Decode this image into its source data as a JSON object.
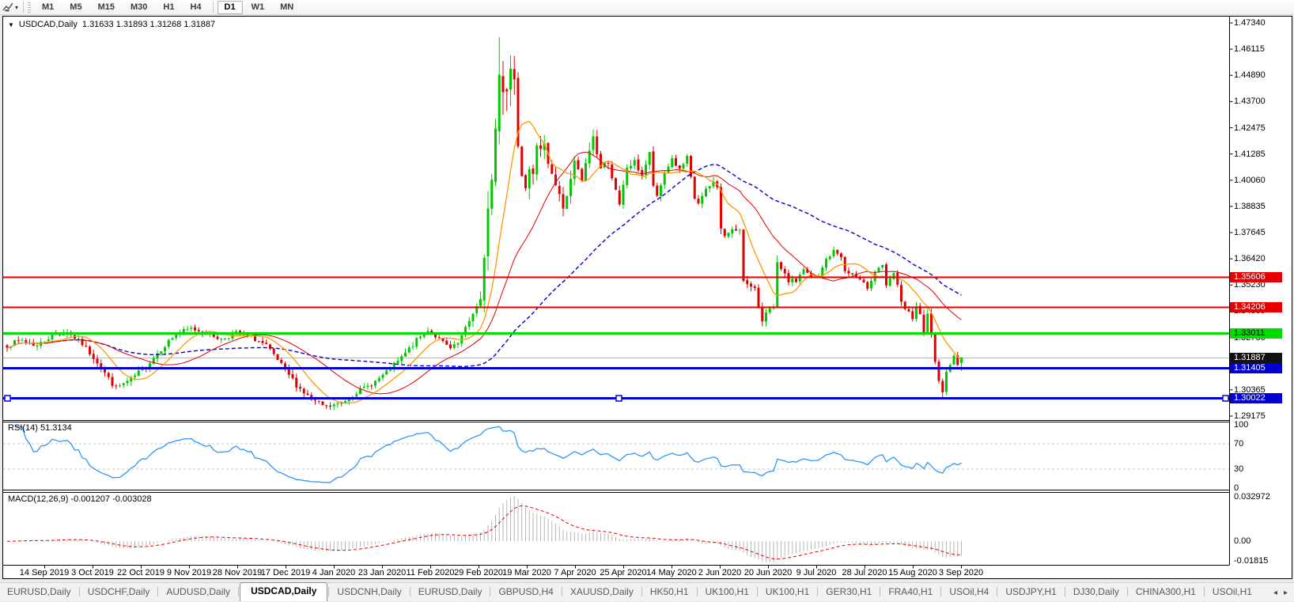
{
  "toolbar": {
    "timeframes": [
      "M1",
      "M5",
      "M15",
      "M30",
      "H1",
      "H4",
      "D1",
      "W1",
      "MN"
    ],
    "active_timeframe": "D1"
  },
  "chart": {
    "title": "USDCAD,Daily",
    "ohlc_text": "1.31633 1.31893 1.31268 1.31887",
    "price_scale_labels": [
      "1.47340",
      "1.46115",
      "1.44890",
      "1.43700",
      "1.42475",
      "1.41285",
      "1.40060",
      "1.38835",
      "1.37645",
      "1.36420",
      "1.35230",
      "1.34005",
      "1.32780",
      "1.31590",
      "1.30365",
      "1.29175"
    ],
    "date_labels": [
      "14 Sep 2019",
      "3 Oct 2019",
      "22 Oct 2019",
      "9 Nov 2019",
      "28 Nov 2019",
      "17 Dec 2019",
      "4 Jan 2020",
      "23 Jan 2020",
      "11 Feb 2020",
      "29 Feb 2020",
      "19 Mar 2020",
      "7 Apr 2020",
      "25 Apr 2020",
      "14 May 2020",
      "2 Jun 2020",
      "20 Jun 2020",
      "9 Jul 2020",
      "28 Jul 2020",
      "15 Aug 2020",
      "3 Sep 2020"
    ]
  },
  "rsi_pane": {
    "label": "RSI(14) 51.3134",
    "scale_labels": [
      "100",
      "70",
      "30",
      "0"
    ],
    "levels": [
      70,
      30
    ],
    "line_color": "#1E90FF"
  },
  "macd_pane": {
    "label": "MACD(12,26,9) -0.001207 -0.003028",
    "scale_labels": [
      "0.032972",
      "0.00",
      "-0.01815"
    ],
    "histogram_color": "#b6b6b6",
    "signal_color": "#e60000"
  },
  "tabs": {
    "items": [
      "EURUSD,Daily",
      "USDCHF,Daily",
      "AUDUSD,Daily",
      "USDCAD,Daily",
      "USDCNH,Daily",
      "EURUSD,Daily",
      "GBPUSD,H4",
      "XAUUSD,Daily",
      "HK50,H1",
      "UK100,H1",
      "UK100,H1",
      "GER30,H1",
      "FRA40,H1",
      "USOil,H4",
      "USDJPY,H1",
      "DJ30,Daily",
      "CHINA300,H1",
      "USOil,H1"
    ],
    "active_index": 3,
    "scroll_left": "◂",
    "scroll_right": "▸"
  },
  "chart_data": {
    "type": "candlestick",
    "symbol": "USDCAD",
    "timeframe": "Daily",
    "bars": 255,
    "price_axis": {
      "max": 1.4734,
      "min": 1.29175
    },
    "seed": 7,
    "colors": {
      "up": "#00c800",
      "down": "#e00000",
      "sma_fast": "#ff9900",
      "sma_mid": "#e00000",
      "sma_slow": "#0000c8"
    },
    "sma_periods": {
      "fast": 10,
      "mid": 25,
      "slow": 60
    },
    "rsi_period": 14,
    "macd_params": [
      12,
      26,
      9
    ],
    "anchors": [
      [
        0,
        1.3245,
        0.0042
      ],
      [
        4,
        1.3268,
        0.0042
      ],
      [
        8,
        1.3242,
        0.004
      ],
      [
        12,
        1.3292,
        0.004
      ],
      [
        16,
        1.3306,
        0.0038
      ],
      [
        20,
        1.3252,
        0.004
      ],
      [
        24,
        1.317,
        0.0045
      ],
      [
        27,
        1.309,
        0.0048
      ],
      [
        29,
        1.3048,
        0.0042
      ],
      [
        33,
        1.3085,
        0.004
      ],
      [
        37,
        1.315,
        0.004
      ],
      [
        41,
        1.3228,
        0.004
      ],
      [
        45,
        1.3298,
        0.0038
      ],
      [
        49,
        1.3322,
        0.0034
      ],
      [
        53,
        1.3302,
        0.0032
      ],
      [
        57,
        1.3272,
        0.0032
      ],
      [
        61,
        1.3302,
        0.0032
      ],
      [
        65,
        1.3282,
        0.0032
      ],
      [
        69,
        1.3242,
        0.0034
      ],
      [
        73,
        1.3152,
        0.004
      ],
      [
        77,
        1.3062,
        0.0042
      ],
      [
        81,
        1.2992,
        0.004
      ],
      [
        85,
        1.2958,
        0.0034
      ],
      [
        89,
        1.2978,
        0.0032
      ],
      [
        93,
        1.3028,
        0.0032
      ],
      [
        97,
        1.3065,
        0.0032
      ],
      [
        101,
        1.3118,
        0.0034
      ],
      [
        105,
        1.3188,
        0.0036
      ],
      [
        109,
        1.3268,
        0.0036
      ],
      [
        112,
        1.3318,
        0.0034
      ],
      [
        115,
        1.3272,
        0.0032
      ],
      [
        118,
        1.3228,
        0.0032
      ],
      [
        120,
        1.3252,
        0.0034
      ],
      [
        122,
        1.3318,
        0.004
      ],
      [
        124,
        1.3398,
        0.005
      ],
      [
        126,
        1.3445,
        0.0075
      ],
      [
        127,
        1.3625,
        0.011
      ],
      [
        128,
        1.3905,
        0.015
      ],
      [
        129,
        1.4005,
        0.015
      ],
      [
        130,
        1.4248,
        0.017
      ],
      [
        131,
        1.4492,
        0.021
      ],
      [
        132,
        1.4452,
        0.02
      ],
      [
        133,
        1.4445,
        0.018
      ],
      [
        134,
        1.4528,
        0.016
      ],
      [
        135,
        1.4475,
        0.014
      ],
      [
        136,
        1.4192,
        0.014
      ],
      [
        137,
        1.4062,
        0.012
      ],
      [
        138,
        1.3992,
        0.011
      ],
      [
        139,
        1.4088,
        0.01
      ],
      [
        140,
        1.4058,
        0.0092
      ],
      [
        141,
        1.4148,
        0.009
      ],
      [
        142,
        1.4128,
        0.0082
      ],
      [
        143,
        1.4198,
        0.008
      ],
      [
        144,
        1.4098,
        0.0078
      ],
      [
        146,
        1.3985,
        0.0072
      ],
      [
        148,
        1.3882,
        0.007
      ],
      [
        150,
        1.4,
        0.0075
      ],
      [
        151,
        1.4088,
        0.0075
      ],
      [
        153,
        1.4002,
        0.0068
      ],
      [
        155,
        1.4148,
        0.0068
      ],
      [
        156,
        1.4208,
        0.0066
      ],
      [
        158,
        1.4062,
        0.006
      ],
      [
        160,
        1.4098,
        0.0058
      ],
      [
        162,
        1.3952,
        0.0058
      ],
      [
        163,
        1.3885,
        0.0056
      ],
      [
        165,
        1.4068,
        0.0062
      ],
      [
        167,
        1.4088,
        0.005
      ],
      [
        169,
        1.4032,
        0.0048
      ],
      [
        171,
        1.4128,
        0.0048
      ],
      [
        172,
        1.3985,
        0.0052
      ],
      [
        173,
        1.3922,
        0.0048
      ],
      [
        175,
        1.4042,
        0.0046
      ],
      [
        177,
        1.4108,
        0.0042
      ],
      [
        179,
        1.4052,
        0.004
      ],
      [
        181,
        1.4108,
        0.004
      ],
      [
        183,
        1.3922,
        0.0046
      ],
      [
        184,
        1.3902,
        0.004
      ],
      [
        186,
        1.3958,
        0.0038
      ],
      [
        188,
        1.3998,
        0.0038
      ],
      [
        189,
        1.3982,
        0.0038
      ],
      [
        190,
        1.3778,
        0.0055
      ],
      [
        191,
        1.3752,
        0.0046
      ],
      [
        193,
        1.3772,
        0.004
      ],
      [
        195,
        1.3782,
        0.0038
      ],
      [
        196,
        1.3558,
        0.0065
      ],
      [
        197,
        1.3522,
        0.0048
      ],
      [
        199,
        1.3498,
        0.004
      ],
      [
        200,
        1.3422,
        0.0046
      ],
      [
        201,
        1.3362,
        0.0046
      ],
      [
        202,
        1.3408,
        0.0044
      ],
      [
        204,
        1.3412,
        0.0038
      ],
      [
        205,
        1.3618,
        0.0062
      ],
      [
        206,
        1.3588,
        0.0046
      ],
      [
        208,
        1.3542,
        0.0038
      ],
      [
        210,
        1.3542,
        0.0036
      ],
      [
        212,
        1.3598,
        0.0036
      ],
      [
        214,
        1.3552,
        0.0034
      ],
      [
        216,
        1.3562,
        0.0032
      ],
      [
        218,
        1.3642,
        0.0036
      ],
      [
        220,
        1.3678,
        0.0034
      ],
      [
        222,
        1.3658,
        0.003
      ],
      [
        223,
        1.3582,
        0.0036
      ],
      [
        225,
        1.3572,
        0.003
      ],
      [
        227,
        1.3542,
        0.003
      ],
      [
        229,
        1.3512,
        0.003
      ],
      [
        231,
        1.3588,
        0.0036
      ],
      [
        233,
        1.3618,
        0.003
      ],
      [
        234,
        1.3512,
        0.0038
      ],
      [
        236,
        1.3578,
        0.0036
      ],
      [
        238,
        1.3452,
        0.0044
      ],
      [
        239,
        1.3412,
        0.0038
      ],
      [
        240,
        1.3392,
        0.0034
      ],
      [
        241,
        1.3362,
        0.0038
      ],
      [
        242,
        1.3418,
        0.0038
      ],
      [
        243,
        1.3392,
        0.0032
      ],
      [
        244,
        1.3292,
        0.0046
      ],
      [
        245,
        1.3378,
        0.0044
      ],
      [
        246,
        1.3292,
        0.004
      ],
      [
        247,
        1.3182,
        0.0046
      ],
      [
        248,
        1.3088,
        0.004
      ],
      [
        249,
        1.3022,
        0.0038
      ],
      [
        250,
        1.3132,
        0.004
      ],
      [
        251,
        1.3162,
        0.0034
      ],
      [
        252,
        1.3188,
        0.0032
      ],
      [
        253,
        1.3158,
        0.003
      ],
      [
        254,
        1.3189,
        0.003
      ]
    ],
    "spikes": {
      "131": {
        "h": 1.4668
      },
      "85": {
        "l": 1.2951
      },
      "249": {
        "l": 1.2995
      }
    },
    "last_bar": {
      "o": 1.31633,
      "h": 1.31893,
      "l": 1.31268,
      "c": 1.31887
    },
    "hlines": [
      {
        "value": 1.35606,
        "label": "1.35606",
        "color": "#e60000",
        "width": 2,
        "text_color": "#ffffff"
      },
      {
        "value": 1.34206,
        "label": "1.34206",
        "color": "#e60000",
        "width": 2,
        "text_color": "#ffffff"
      },
      {
        "value": 1.33011,
        "label": "1.33011",
        "color": "#00dc00",
        "width": 3,
        "text_color": "#000000"
      },
      {
        "value": 1.31405,
        "label": "1.31405",
        "color": "#0000d2",
        "width": 3,
        "text_color": "#ffffff"
      },
      {
        "value": 1.30022,
        "label": "1.30022",
        "color": "#0000d2",
        "width": 3,
        "text_color": "#ffffff",
        "handles": true
      }
    ],
    "current_price": {
      "value": 1.31887,
      "label": "1.31887",
      "line_color": "#b4b4b4",
      "badge_color": "#111111",
      "text_color": "#ffffff"
    }
  }
}
